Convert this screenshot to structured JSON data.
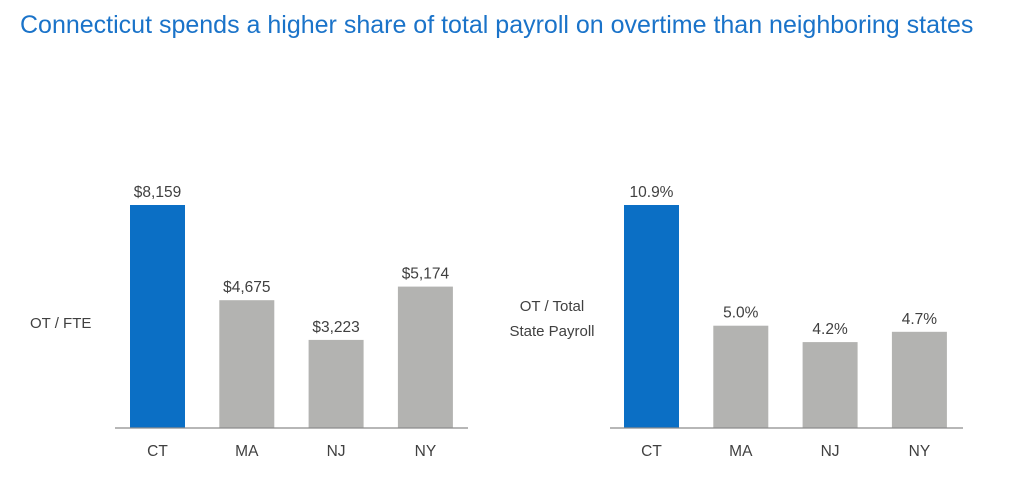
{
  "title": "Connecticut spends a higher share of total payroll on overtime than neighboring states",
  "colors": {
    "title": "#1a73c9",
    "highlight": "#0b6fc5",
    "other": "#b3b3b1",
    "axis": "#8c8c8c",
    "text": "#404040"
  },
  "chart_data": [
    {
      "type": "bar",
      "title": "",
      "ylabel": "OT / FTE",
      "categories": [
        "CT",
        "MA",
        "NJ",
        "NY"
      ],
      "values": [
        8159,
        4675,
        3223,
        5174
      ],
      "value_labels": [
        "$8,159",
        "$4,675",
        "$3,223",
        "$5,174"
      ],
      "highlight": "CT",
      "ylim": [
        0,
        8159
      ],
      "grid": false,
      "legend": "none"
    },
    {
      "type": "bar",
      "title": "",
      "ylabel": "OT / Total State Payroll",
      "categories": [
        "CT",
        "MA",
        "NJ",
        "NY"
      ],
      "values": [
        10.9,
        5.0,
        4.2,
        4.7
      ],
      "value_labels": [
        "10.9%",
        "5.0%",
        "4.2%",
        "4.7%"
      ],
      "highlight": "CT",
      "ylim": [
        0,
        10.9
      ],
      "grid": false,
      "legend": "none"
    }
  ]
}
